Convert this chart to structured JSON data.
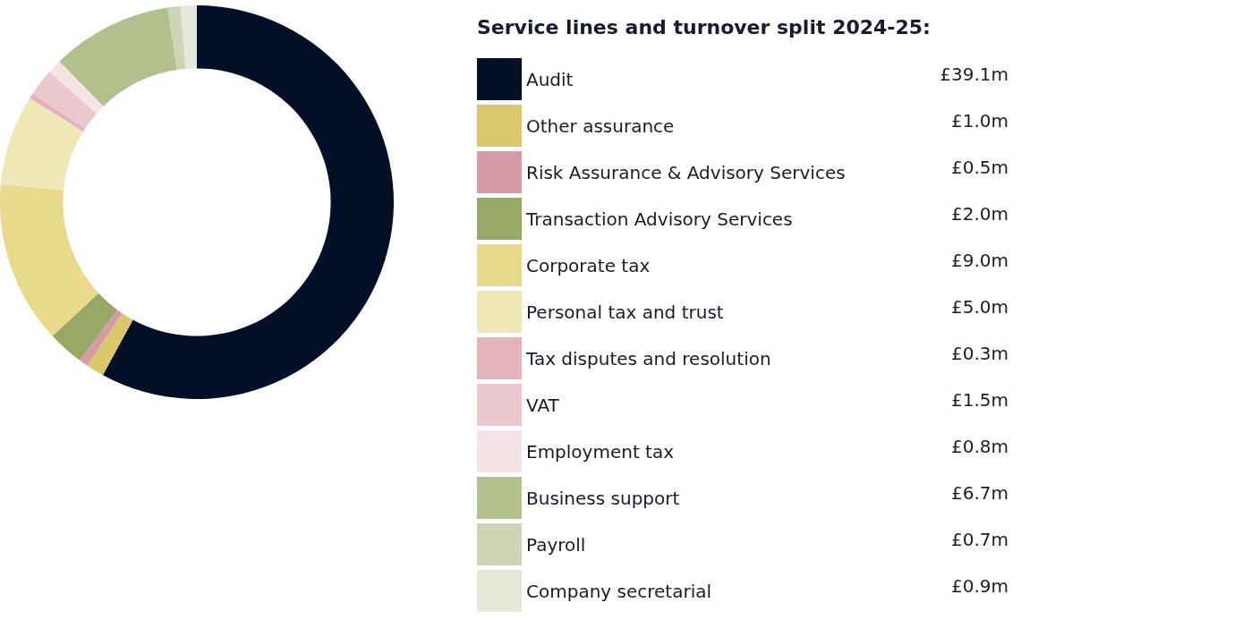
{
  "chart_data": {
    "type": "donut",
    "title": "Service lines and turnover split 2024-25:",
    "categories": [
      "Audit",
      "Other assurance",
      "Risk Assurance & Advisory Services",
      "Transaction Advisory Services",
      "Corporate tax",
      "Personal tax and trust",
      "Tax disputes and resolution",
      "VAT",
      "Employment tax",
      "Business support",
      "Payroll",
      "Company secretarial"
    ],
    "values": [
      39.1,
      1.0,
      0.5,
      2.0,
      9.0,
      5.0,
      0.3,
      1.5,
      0.8,
      6.7,
      0.7,
      0.9
    ],
    "value_labels": [
      "£39.1m",
      "£1.0m",
      "£0.5m",
      "£2.0m",
      "£9.0m",
      "£5.0m",
      "£0.3m",
      "£1.5m",
      "£0.8m",
      "£6.7m",
      "£0.7m",
      "£0.9m"
    ],
    "colors": [
      "#020f26",
      "#d8c86a",
      "#d79ba6",
      "#98a965",
      "#e8da8a",
      "#f0e8b4",
      "#e2b3bb",
      "#ebc8ce",
      "#f5e4e6",
      "#b2c08e",
      "#cdd5b5",
      "#e4e9da"
    ],
    "legend": "right"
  }
}
